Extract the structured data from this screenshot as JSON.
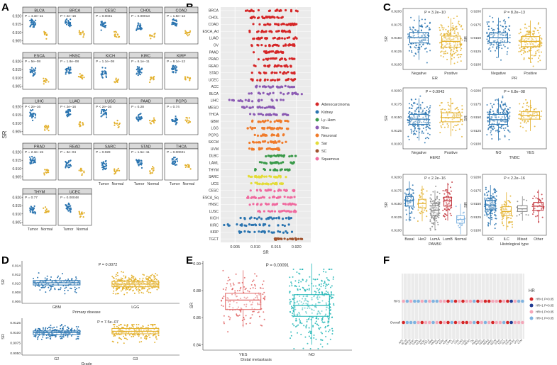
{
  "colors": {
    "tumor": "#2a74b0",
    "normal": "#e3b12e",
    "frame": "#333333",
    "strip": "#d9d9d9",
    "grid": "#e6e6e6",
    "panel_e_yes": "#e06464",
    "panel_e_no": "#1fb5b5",
    "hr_low": "#7fb3e0",
    "hr_high": "#f4a7b9",
    "hr_dark_red": "#d62728",
    "hr_dark_blue": "#1f3a93"
  },
  "panel_labels": {
    "a": "A",
    "b": "B",
    "c": "C",
    "d": "D",
    "e": "E",
    "f": "F"
  },
  "chart_data": [
    {
      "panel": "A",
      "type": "scatter",
      "ylabel": "SR",
      "yticks": [
        "0.920",
        "0.915",
        "0.910",
        "0.905"
      ],
      "ylim": [
        0.903,
        0.922
      ],
      "xlabels": [
        "Tumor",
        "Normal"
      ],
      "cancers": [
        {
          "name": "BLCA",
          "p": "P = 4.3e−11",
          "median": [
            0.9155,
            0.909
          ]
        },
        {
          "name": "BRCA",
          "p": "P < 2e−16",
          "median": [
            0.9155,
            0.9095
          ]
        },
        {
          "name": "CESC",
          "p": "P = 0.0031",
          "median": [
            0.9145,
            0.9085
          ]
        },
        {
          "name": "CHOL",
          "p": "P = 0.00013",
          "median": [
            0.913,
            0.9075
          ]
        },
        {
          "name": "COAD",
          "p": "P = 1.8e−12",
          "median": [
            0.916,
            0.91
          ]
        },
        {
          "name": "ESCA",
          "p": "P = 5e−08",
          "median": [
            0.9135,
            0.9085
          ]
        },
        {
          "name": "HNSC",
          "p": "P = 1.8e−08",
          "median": [
            0.915,
            0.911
          ]
        },
        {
          "name": "KICH",
          "p": "P = 1.1e−08",
          "median": [
            0.913,
            0.908
          ]
        },
        {
          "name": "KIRC",
          "p": "P = 6.1e−11",
          "median": [
            0.9145,
            0.9095
          ]
        },
        {
          "name": "KIRP",
          "p": "P = 8.1e−12",
          "median": [
            0.9155,
            0.9095
          ]
        },
        {
          "name": "LIHC",
          "p": "P < 2e−16",
          "median": [
            0.915,
            0.9075
          ]
        },
        {
          "name": "LUAD",
          "p": "P < 2e−16",
          "median": [
            0.9165,
            0.91
          ]
        },
        {
          "name": "LUSC",
          "p": "P < 2e−16",
          "median": [
            0.9165,
            0.9095
          ]
        },
        {
          "name": "PAAD",
          "p": "P = 0.28",
          "median": [
            0.9135,
            0.9115
          ]
        },
        {
          "name": "PCPG",
          "p": "P = 0.74",
          "median": [
            0.912,
            0.9115
          ]
        },
        {
          "name": "PRAD",
          "p": "P = 2.3e−15",
          "median": [
            0.9145,
            0.9085
          ]
        },
        {
          "name": "READ",
          "p": "P = 3e−04",
          "median": [
            0.9125,
            0.9085
          ]
        },
        {
          "name": "SARC",
          "p": "P = 0.028",
          "median": [
            0.912,
            0.909
          ]
        },
        {
          "name": "STAD",
          "p": "P = 1.5e−11",
          "median": [
            0.9135,
            0.909
          ]
        },
        {
          "name": "THCA",
          "p": "P = 0.00021",
          "median": [
            0.914,
            0.9115
          ]
        },
        {
          "name": "THYM",
          "p": "P = 0.77",
          "median": [
            0.913,
            0.912
          ]
        },
        {
          "name": "UCEC",
          "p": "P = 0.00048",
          "median": [
            0.914,
            0.9095
          ]
        }
      ]
    },
    {
      "panel": "B",
      "type": "strip",
      "xlabel": "SR",
      "xticks": [
        "0.905",
        "0.910",
        "0.915",
        "0.920"
      ],
      "xlim": [
        0.9015,
        0.9235
      ],
      "categories": [
        "BRCA",
        "CHOL",
        "COAD",
        "ESCA_Ad",
        "LUAD",
        "OV",
        "PAAD",
        "PRAD",
        "READ",
        "STAD",
        "UCEC",
        "ACC",
        "BLCA",
        "LIHC",
        "MESO",
        "THCA",
        "GBM",
        "LGG",
        "PCPG",
        "SKCM",
        "UVM",
        "DLBC",
        "LAML",
        "THYM",
        "SARC",
        "UCS",
        "CESC",
        "ESCA_Sq",
        "HNSC",
        "LUSC",
        "KICH",
        "KIRC",
        "KIRP",
        "TGCT"
      ],
      "groups": [
        "Adenocarcinoma",
        "Adenocarcinoma",
        "Adenocarcinoma",
        "Adenocarcinoma",
        "Adenocarcinoma",
        "Adenocarcinoma",
        "Adenocarcinoma",
        "Adenocarcinoma",
        "Adenocarcinoma",
        "Adenocarcinoma",
        "Adenocarcinoma",
        "Misc",
        "Misc",
        "Misc",
        "Misc",
        "Misc",
        "Neuronal",
        "Neuronal",
        "Neuronal",
        "Neuronal",
        "Neuronal",
        "Ly-Hem",
        "Ly-Hem",
        "Ly-Hem",
        "Sar",
        "Sar",
        "Squamous",
        "Squamous",
        "Squamous",
        "Squamous",
        "Kidney",
        "Kidney",
        "Kidney",
        "SC"
      ],
      "ranges": [
        [
          0.9075,
          0.9205
        ],
        [
          0.9085,
          0.917
        ],
        [
          0.909,
          0.92
        ],
        [
          0.9085,
          0.919
        ],
        [
          0.909,
          0.9205
        ],
        [
          0.908,
          0.9195
        ],
        [
          0.9085,
          0.917
        ],
        [
          0.9095,
          0.9195
        ],
        [
          0.909,
          0.919
        ],
        [
          0.9085,
          0.92
        ],
        [
          0.9085,
          0.92
        ],
        [
          0.908,
          0.9195
        ],
        [
          0.908,
          0.9215
        ],
        [
          0.9035,
          0.9175
        ],
        [
          0.906,
          0.915
        ],
        [
          0.9085,
          0.918
        ],
        [
          0.908,
          0.918
        ],
        [
          0.9075,
          0.918
        ],
        [
          0.908,
          0.917
        ],
        [
          0.9075,
          0.9175
        ],
        [
          0.908,
          0.916
        ],
        [
          0.912,
          0.92
        ],
        [
          0.9105,
          0.9195
        ],
        [
          0.909,
          0.919
        ],
        [
          0.908,
          0.918
        ],
        [
          0.9085,
          0.917
        ],
        [
          0.9075,
          0.9195
        ],
        [
          0.9075,
          0.92
        ],
        [
          0.9085,
          0.92
        ],
        [
          0.9085,
          0.9205
        ],
        [
          0.906,
          0.919
        ],
        [
          0.902,
          0.9185
        ],
        [
          0.9045,
          0.9195
        ],
        [
          0.914,
          0.9215
        ]
      ],
      "legend": [
        {
          "name": "Adenocarcinoma",
          "color": "#d62728"
        },
        {
          "name": "Kidney",
          "color": "#2a74b0"
        },
        {
          "name": "Ly−Hem",
          "color": "#3a9a4a"
        },
        {
          "name": "Misc",
          "color": "#8c5cb4"
        },
        {
          "name": "Neuronal",
          "color": "#f07b2a"
        },
        {
          "name": "Sar",
          "color": "#e4dc3a"
        },
        {
          "name": "SC",
          "color": "#a0522d"
        },
        {
          "name": "Squamous",
          "color": "#f06ca0"
        }
      ]
    },
    {
      "panel": "C",
      "type": "boxplot",
      "ylabel": "SR",
      "yticks": [
        "0.9200",
        "0.9175",
        "0.9150",
        "0.9125",
        "0.9100"
      ],
      "ylim": [
        0.909,
        0.9205
      ],
      "subplots": [
        {
          "p": "P = 3.2e−10",
          "xlabel": "ER",
          "categories": [
            "Negative",
            "Positive"
          ],
          "medians": [
            0.915,
            0.9143
          ],
          "q1": [
            0.914,
            0.9132
          ],
          "q3": [
            0.916,
            0.9153
          ],
          "n": [
            120,
            170
          ]
        },
        {
          "p": "P = 8.2e−13",
          "xlabel": "PR",
          "categories": [
            "Negative",
            "Positive"
          ],
          "medians": [
            0.915,
            0.9143
          ],
          "q1": [
            0.9141,
            0.9133
          ],
          "q3": [
            0.9159,
            0.9152
          ],
          "n": [
            130,
            150
          ]
        },
        {
          "p": "P = 0.0043",
          "xlabel": "HER2",
          "categories": [
            "Negative",
            "Positive"
          ],
          "medians": [
            0.9146,
            0.9149
          ],
          "q1": [
            0.9136,
            0.9141
          ],
          "q3": [
            0.9155,
            0.9158
          ],
          "n": [
            170,
            80
          ]
        },
        {
          "p": "P = 6.8e−08",
          "xlabel": "TNBC",
          "categories": [
            "NO",
            "YES"
          ],
          "medians": [
            0.9145,
            0.9153
          ],
          "q1": [
            0.9136,
            0.9146
          ],
          "q3": [
            0.9155,
            0.916
          ],
          "n": [
            180,
            70
          ]
        },
        {
          "p": "P < 2.2e−16",
          "xlabel": "PAM50",
          "categories": [
            "Basal",
            "Her2",
            "LumA",
            "LumB",
            "Normal"
          ],
          "medians": [
            0.9155,
            0.915,
            0.9137,
            0.9155,
            0.912
          ],
          "q1": [
            0.9145,
            0.9142,
            0.9128,
            0.9145,
            0.9113
          ],
          "q3": [
            0.9163,
            0.9158,
            0.9146,
            0.9162,
            0.9127
          ],
          "n": [
            60,
            30,
            110,
            60,
            14
          ]
        },
        {
          "p": "P < 2.2e−16",
          "xlabel": "Histological type",
          "categories": [
            "IDC",
            "ILC",
            "Mixed",
            "Other"
          ],
          "medians": [
            0.9147,
            0.9135,
            0.914,
            0.9145
          ],
          "q1": [
            0.9138,
            0.9127,
            0.9135,
            0.9137
          ],
          "q3": [
            0.9156,
            0.9144,
            0.9146,
            0.9152
          ],
          "n": [
            140,
            60,
            12,
            40
          ]
        }
      ],
      "palette": [
        "#2a74b0",
        "#e3b12e",
        "#8a8a8a",
        "#c2323a",
        "#7fb3e0"
      ]
    },
    {
      "panel": "D",
      "type": "boxplot",
      "ylabel": "SR",
      "subplots": [
        {
          "p": "P = 0.0072",
          "xlabel": "Primary disease",
          "categories": [
            "GBM",
            "LGG"
          ],
          "yticks": [
            "0.914",
            "0.912",
            "0.910",
            "0.908",
            "0.906"
          ],
          "ylim": [
            0.9055,
            0.915
          ],
          "medians": [
            0.9101,
            0.9098
          ],
          "q1": [
            0.9096,
            0.9092
          ],
          "q3": [
            0.9106,
            0.9104
          ],
          "n": [
            130,
            300
          ]
        },
        {
          "p": "P = 7.5e−07",
          "xlabel": "Grade",
          "categories": [
            "G2",
            "G3"
          ],
          "yticks": [
            "0.9125",
            "0.9100",
            "0.9075",
            "0.9050"
          ],
          "ylim": [
            0.9045,
            0.9135
          ],
          "medians": [
            0.91,
            0.9103
          ],
          "q1": [
            0.9095,
            0.9097
          ],
          "q3": [
            0.9104,
            0.911
          ],
          "n": [
            200,
            180
          ]
        }
      ]
    },
    {
      "panel": "E",
      "type": "boxplot",
      "ylabel": "SR",
      "p": "P = 0.00091",
      "xlabel": "Distal metastasis",
      "categories": [
        "YES",
        "NO"
      ],
      "yticks": [
        "0.90",
        "0.88",
        "0.86",
        "0.84"
      ],
      "ylim": [
        0.836,
        0.902
      ],
      "medians": [
        0.873,
        0.869
      ],
      "q1": [
        0.866,
        0.861
      ],
      "q3": [
        0.878,
        0.877
      ],
      "whisker_low": [
        0.853,
        0.84
      ],
      "whisker_high": [
        0.895,
        0.9
      ],
      "n": [
        150,
        330
      ]
    },
    {
      "panel": "F",
      "type": "dotmatrix",
      "rows": [
        "RFS",
        "Overall"
      ],
      "columns": [
        "ACC",
        "BLCA",
        "BRCA",
        "CESC",
        "CHOL",
        "COAD",
        "DLBC",
        "ESCA",
        "GBM",
        "HNSC",
        "KICH",
        "KIRC",
        "KIRP",
        "LAML",
        "LGG",
        "LIHC",
        "LUAD",
        "LUSC",
        "MESO",
        "OV",
        "PAAD",
        "PCPG",
        "PRAD",
        "READ",
        "SARC",
        "SKCM",
        "STAD",
        "TGCT",
        "THCA",
        "THYM",
        "UCEC",
        "UCS",
        "UVM"
      ],
      "values": [
        [
          "hr_high",
          "hr_low",
          "hr_high",
          "hr_low",
          "hr_low",
          "hr_high",
          "hr_low",
          "hr_high",
          "hr_low",
          "hr_low",
          "hr_high",
          "hr_high",
          "hr_dark_red",
          "hr_low",
          "hr_dark_red",
          "hr_high",
          "hr_dark_red",
          "hr_high",
          "hr_high",
          "hr_low",
          "hr_dark_red",
          "hr_high",
          "hr_dark_red",
          "hr_dark_red",
          "hr_high",
          "hr_high",
          "hr_dark_red",
          "hr_high",
          "hr_dark_red",
          "hr_dark_blue",
          "hr_high",
          "hr_low",
          "hr_low"
        ],
        [
          "hr_dark_red",
          "hr_low",
          "hr_low",
          "hr_low",
          "hr_high",
          "hr_dark_red",
          "hr_high",
          "hr_high",
          "hr_low",
          "hr_high",
          "hr_dark_red",
          "hr_high",
          "hr_dark_red",
          "hr_low",
          "hr_dark_red",
          "hr_high",
          "hr_dark_red",
          "hr_dark_red",
          "hr_high",
          "hr_low",
          "hr_dark_red",
          "hr_high",
          "hr_low",
          "hr_high",
          "hr_dark_red",
          "hr_high",
          "hr_high",
          "hr_low",
          "hr_dark_red",
          "hr_dark_blue",
          "hr_high",
          "hr_high",
          "hr_high"
        ]
      ],
      "legend_title": "HR",
      "legend": [
        {
          "label": "HR>1 P<0.05",
          "color_key": "hr_dark_red"
        },
        {
          "label": "HR<1 P<0.05",
          "color_key": "hr_dark_blue"
        },
        {
          "label": "HR>1 P>0.05",
          "color_key": "hr_high"
        },
        {
          "label": "HR<1 P>0.05",
          "color_key": "hr_low"
        }
      ]
    }
  ]
}
